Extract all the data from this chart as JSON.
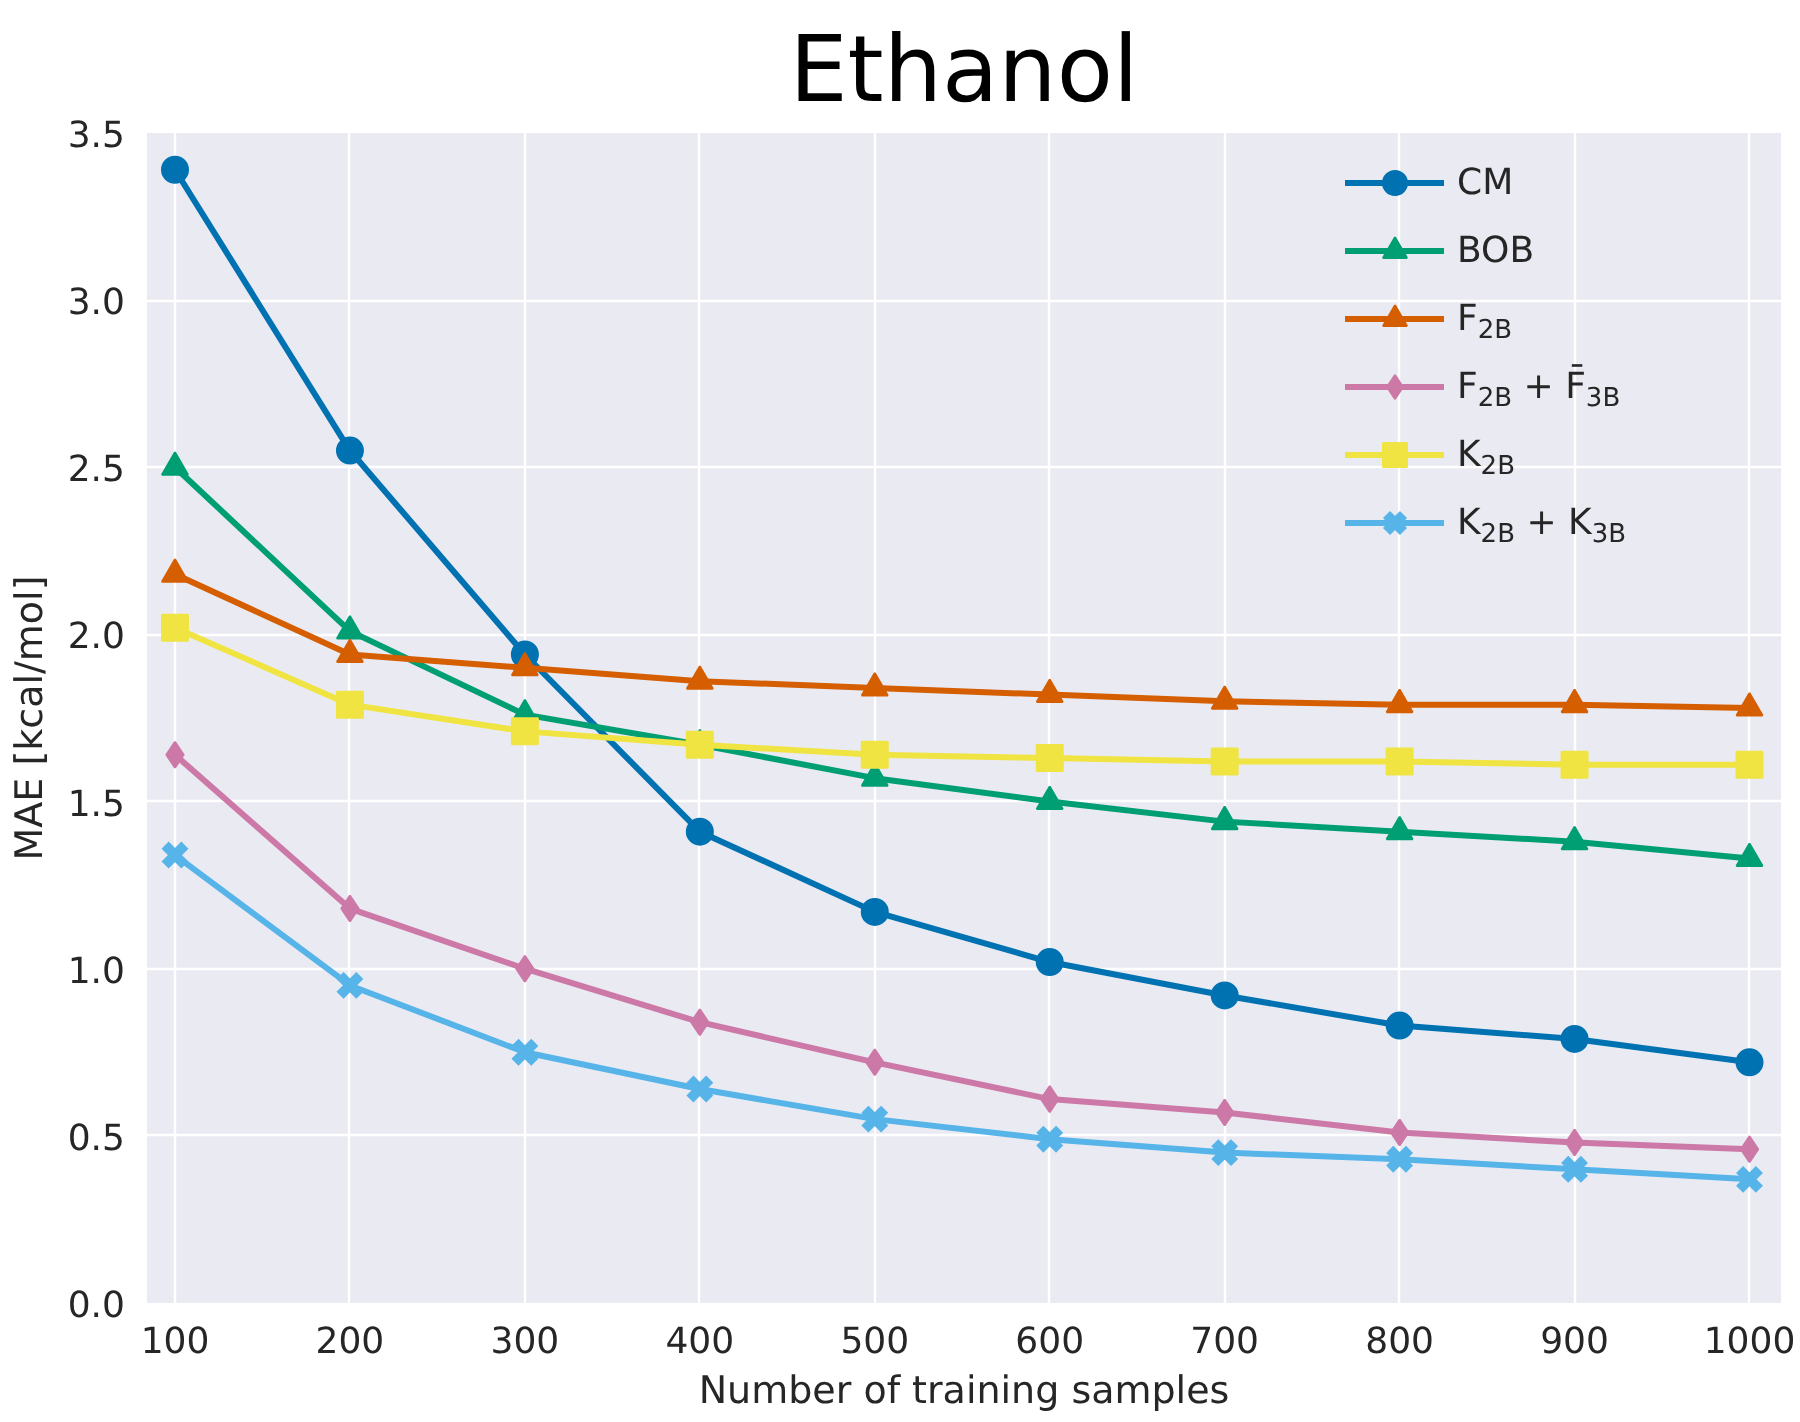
{
  "chart_data": {
    "type": "line",
    "title": "Ethanol",
    "xlabel": "Number of training samples",
    "ylabel": "MAE [kcal/mol]",
    "x": [
      100,
      200,
      300,
      400,
      500,
      600,
      700,
      800,
      900,
      1000
    ],
    "series": [
      {
        "name": "CM",
        "color": "#0072b2",
        "marker": "circle",
        "values": [
          3.39,
          2.55,
          1.94,
          1.41,
          1.17,
          1.02,
          0.92,
          0.83,
          0.79,
          0.72
        ]
      },
      {
        "name": "BOB",
        "color": "#009e73",
        "marker": "triangle",
        "values": [
          2.5,
          2.01,
          1.76,
          1.67,
          1.57,
          1.5,
          1.44,
          1.41,
          1.38,
          1.33
        ]
      },
      {
        "name": "F$_{2B}$",
        "color": "#d55e00",
        "marker": "triangle",
        "values": [
          2.18,
          1.94,
          1.9,
          1.86,
          1.84,
          1.82,
          1.8,
          1.79,
          1.79,
          1.78
        ]
      },
      {
        "name": "F$_{2B}$ + F̄$_{3B}$",
        "color": "#cc79a7",
        "marker": "diamond",
        "values": [
          1.64,
          1.18,
          1.0,
          0.84,
          0.72,
          0.61,
          0.57,
          0.51,
          0.48,
          0.46
        ]
      },
      {
        "name": "K$_{2B}$",
        "color": "#f0e442",
        "marker": "square",
        "values": [
          2.02,
          1.79,
          1.71,
          1.67,
          1.64,
          1.63,
          1.62,
          1.62,
          1.61,
          1.61
        ]
      },
      {
        "name": "K$_{2B}$ + K$_{3B}$",
        "color": "#56b4e9",
        "marker": "x",
        "values": [
          1.34,
          0.95,
          0.75,
          0.64,
          0.55,
          0.49,
          0.45,
          0.43,
          0.4,
          0.37
        ]
      }
    ],
    "xlim": [
      84,
      1018
    ],
    "ylim": [
      0,
      3.5
    ],
    "xticks": [
      100,
      200,
      300,
      400,
      500,
      600,
      700,
      800,
      900,
      1000
    ],
    "yticks": [
      {
        "value": 0,
        "label": "0.0"
      },
      {
        "value": 0.5,
        "label": "0.5"
      },
      {
        "value": 1,
        "label": "1.0"
      },
      {
        "value": 1.5,
        "label": "1.5"
      },
      {
        "value": 2,
        "label": "2.0"
      },
      {
        "value": 2.5,
        "label": "2.5"
      },
      {
        "value": 3,
        "label": "3.0"
      },
      {
        "value": 3.5,
        "label": "3.5"
      }
    ],
    "grid": true,
    "legend": "top right",
    "line_style": "solid"
  }
}
